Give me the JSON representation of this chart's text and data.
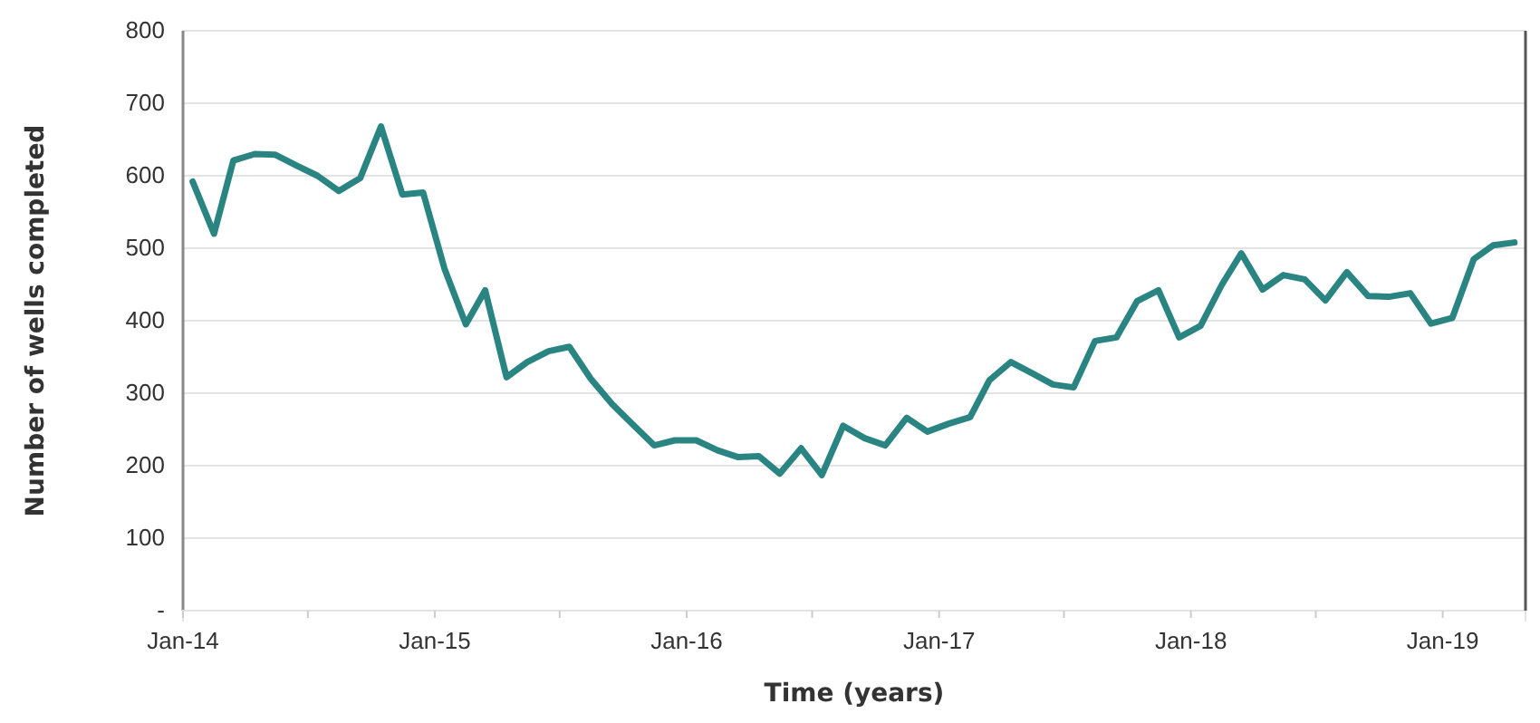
{
  "chart_data": {
    "type": "line",
    "xlabel": "Time (years)",
    "ylabel": "Number of wells completed",
    "x": [
      "2014-01-15",
      "2014-02-15",
      "2014-03-15",
      "2014-04-15",
      "2014-05-15",
      "2014-06-15",
      "2014-07-15",
      "2014-08-15",
      "2014-09-15",
      "2014-10-15",
      "2014-11-15",
      "2014-12-15",
      "2015-01-15",
      "2015-02-15",
      "2015-03-15",
      "2015-04-15",
      "2015-05-15",
      "2015-06-15",
      "2015-07-15",
      "2015-08-15",
      "2015-09-15",
      "2015-10-15",
      "2015-11-15",
      "2015-12-15",
      "2016-01-15",
      "2016-02-15",
      "2016-03-15",
      "2016-04-15",
      "2016-05-15",
      "2016-06-15",
      "2016-07-15",
      "2016-08-15",
      "2016-09-15",
      "2016-10-15",
      "2016-11-15",
      "2016-12-15",
      "2017-01-15",
      "2017-02-15",
      "2017-03-15",
      "2017-04-15",
      "2017-05-15",
      "2017-06-15",
      "2017-07-15",
      "2017-08-15",
      "2017-09-15",
      "2017-10-15",
      "2017-11-15",
      "2017-12-15",
      "2018-01-15",
      "2018-02-15",
      "2018-03-15",
      "2018-04-15",
      "2018-05-15",
      "2018-06-15",
      "2018-07-15",
      "2018-08-15",
      "2018-09-15",
      "2018-10-15",
      "2018-11-15",
      "2018-12-15",
      "2019-01-15",
      "2019-02-15",
      "2019-03-15",
      "2019-04-15"
    ],
    "series": [
      {
        "color": "#2a8582",
        "values": [
          592,
          520,
          621,
          630,
          629,
          614,
          600,
          579,
          597,
          668,
          574,
          577,
          472,
          395,
          442,
          322,
          343,
          358,
          364,
          320,
          285,
          257,
          228,
          235,
          235,
          221,
          212,
          213,
          189,
          224,
          187,
          255,
          238,
          228,
          266,
          247,
          258,
          267,
          318,
          343,
          328,
          312,
          308,
          372,
          377,
          427,
          442,
          377,
          393,
          450,
          493,
          443,
          463,
          457,
          428,
          467,
          434,
          433,
          438,
          396,
          404,
          485,
          504,
          508
        ]
      }
    ],
    "xlim": [
      "2014-01-01",
      "2019-05-01"
    ],
    "xticks": [
      {
        "value": "2014-01-01",
        "label": "Jan-14"
      },
      {
        "value": "2014-07-01",
        "label": null
      },
      {
        "value": "2015-01-01",
        "label": "Jan-15"
      },
      {
        "value": "2015-07-01",
        "label": null
      },
      {
        "value": "2016-01-01",
        "label": "Jan-16"
      },
      {
        "value": "2016-07-01",
        "label": null
      },
      {
        "value": "2017-01-01",
        "label": "Jan-17"
      },
      {
        "value": "2017-07-01",
        "label": null
      },
      {
        "value": "2018-01-01",
        "label": "Jan-18"
      },
      {
        "value": "2018-07-01",
        "label": null
      },
      {
        "value": "2019-01-01",
        "label": "Jan-19"
      }
    ],
    "ylim": [
      0,
      800
    ],
    "yticks": [
      {
        "value": 0,
        "label": "-"
      },
      100,
      200,
      300,
      400,
      500,
      600,
      700,
      800
    ],
    "grid": "y",
    "line_style": "solid"
  }
}
